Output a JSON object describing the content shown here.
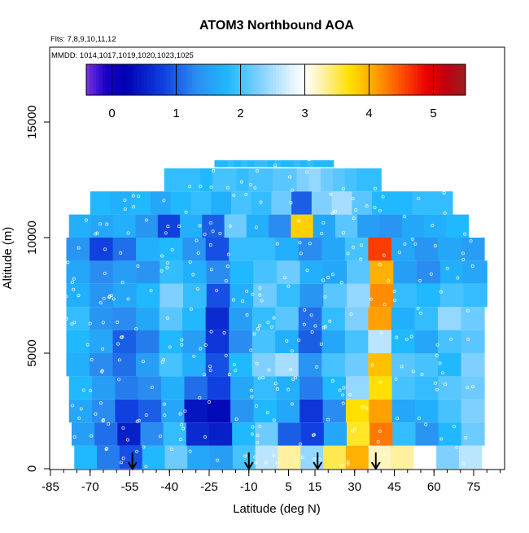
{
  "chart_data": {
    "type": "heatmap",
    "title": "ATOM3 Northbound AOA",
    "subtitle_flights": "Flts: 7,8,9,10,11,12",
    "subtitle_dates": "MMDD: 1014,1017,1019,1020,1023,1025",
    "xlabel": "Latitude (deg N)",
    "ylabel": "Altitude (m)",
    "xlim": [
      -85,
      85
    ],
    "ylim": [
      0,
      17500
    ],
    "x_ticks": [
      -85,
      -70,
      -55,
      -40,
      -25,
      -10,
      5,
      15,
      30,
      45,
      60,
      75
    ],
    "x_tick_labels": [
      "-85",
      "-70",
      "-55",
      "-40",
      "-25",
      "-10",
      "5",
      "15",
      "30",
      "45",
      "60",
      "75"
    ],
    "x_minor_step": 5,
    "y_ticks": [
      0,
      5000,
      10000,
      15000
    ],
    "y_tick_labels": [
      "0",
      "5000",
      "10000",
      "15000"
    ],
    "colorbar": {
      "range": [
        -0.4,
        5.5
      ],
      "ticks": [
        0,
        1,
        2,
        3,
        4,
        5
      ],
      "tick_labels": [
        "0",
        "1",
        "2",
        "3",
        "4",
        "5"
      ],
      "stops": [
        {
          "v": -0.4,
          "color": "#7a33e0"
        },
        {
          "v": -0.1,
          "color": "#1a00c8"
        },
        {
          "v": 0.2,
          "color": "#0000b0"
        },
        {
          "v": 0.8,
          "color": "#1040e0"
        },
        {
          "v": 1.3,
          "color": "#2a8cf0"
        },
        {
          "v": 1.8,
          "color": "#20b8ff"
        },
        {
          "v": 2.3,
          "color": "#80d0ff"
        },
        {
          "v": 2.75,
          "color": "#d8f0ff"
        },
        {
          "v": 3.0,
          "color": "#ffffff"
        },
        {
          "v": 3.3,
          "color": "#fff0a0"
        },
        {
          "v": 3.7,
          "color": "#ffe000"
        },
        {
          "v": 4.1,
          "color": "#ffa000"
        },
        {
          "v": 4.5,
          "color": "#ff5000"
        },
        {
          "v": 4.9,
          "color": "#e80000"
        },
        {
          "v": 5.2,
          "color": "#c00010"
        },
        {
          "v": 5.5,
          "color": "#9a2020"
        }
      ]
    },
    "arrows_latitude": [
      -54,
      -10,
      16,
      38
    ],
    "profile_bands": [
      {
        "alt": 500,
        "lat_min": -76,
        "lat_max": 78,
        "values": [
          1.8,
          1.2,
          0.9,
          1.8,
          2.2,
          1.6,
          1.5,
          2.0,
          2.6,
          3.3,
          2.4,
          3.5,
          4.0,
          3.2,
          3.3,
          3.0,
          2.3,
          2.6
        ]
      },
      {
        "alt": 1500,
        "lat_min": -77,
        "lat_max": 79,
        "values": [
          1.5,
          1.1,
          0.5,
          1.3,
          1.9,
          0.6,
          0.5,
          1.8,
          2.2,
          1.0,
          0.8,
          1.6,
          3.6,
          4.3,
          1.9,
          1.4,
          1.8,
          2.2
        ]
      },
      {
        "alt": 2500,
        "lat_min": -78,
        "lat_max": 79,
        "values": [
          1.6,
          1.3,
          0.8,
          1.0,
          1.6,
          0.4,
          0.3,
          1.4,
          1.8,
          1.6,
          0.7,
          1.3,
          3.7,
          4.1,
          1.6,
          1.7,
          2.0,
          2.3
        ]
      },
      {
        "alt": 3500,
        "lat_min": -78,
        "lat_max": 79,
        "values": [
          1.8,
          1.5,
          1.2,
          1.3,
          1.7,
          1.1,
          0.8,
          1.6,
          1.9,
          1.7,
          1.2,
          1.8,
          2.4,
          3.7,
          2.0,
          1.9,
          2.1,
          2.2
        ]
      },
      {
        "alt": 4500,
        "lat_min": -79,
        "lat_max": 79,
        "values": [
          1.7,
          1.3,
          1.1,
          1.5,
          2.0,
          1.7,
          0.9,
          1.8,
          2.3,
          2.5,
          1.4,
          2.0,
          2.2,
          3.9,
          2.1,
          2.0,
          1.8,
          2.3
        ]
      },
      {
        "alt": 5500,
        "lat_min": -79,
        "lat_max": 79,
        "values": [
          1.8,
          1.6,
          1.0,
          1.2,
          1.8,
          1.5,
          0.7,
          1.3,
          2.0,
          1.7,
          1.0,
          1.6,
          2.0,
          2.6,
          1.8,
          1.6,
          2.0,
          2.1
        ]
      },
      {
        "alt": 6500,
        "lat_min": -79,
        "lat_max": 79,
        "values": [
          1.9,
          1.4,
          1.3,
          1.6,
          2.1,
          1.8,
          0.6,
          1.5,
          1.9,
          2.1,
          1.1,
          1.9,
          2.3,
          4.1,
          1.7,
          1.9,
          2.4,
          2.2
        ]
      },
      {
        "alt": 7500,
        "lat_min": -79,
        "lat_max": 80,
        "values": [
          1.7,
          1.4,
          1.6,
          1.8,
          2.3,
          1.9,
          0.9,
          1.7,
          2.2,
          1.9,
          1.4,
          2.1,
          2.4,
          4.2,
          1.9,
          1.8,
          2.0,
          1.9
        ]
      },
      {
        "alt": 8500,
        "lat_min": -79,
        "lat_max": 80,
        "values": [
          1.6,
          1.3,
          1.5,
          1.4,
          1.9,
          1.7,
          1.3,
          1.8,
          2.0,
          2.2,
          1.7,
          1.6,
          2.1,
          4.0,
          1.5,
          1.3,
          1.7,
          1.6
        ]
      },
      {
        "alt": 9500,
        "lat_min": -79,
        "lat_max": 79,
        "values": [
          1.4,
          0.8,
          1.1,
          1.7,
          1.8,
          1.4,
          0.9,
          1.9,
          1.9,
          1.7,
          1.3,
          1.6,
          2.0,
          4.6,
          1.6,
          1.4,
          1.6,
          1.5
        ]
      },
      {
        "alt": 10500,
        "lat_min": -78,
        "lat_max": 73,
        "values": [
          1.7,
          1.6,
          1.7,
          1.4,
          0.8,
          1.7,
          1.0,
          2.2,
          1.7,
          1.3,
          3.8,
          1.6,
          2.1,
          1.5,
          1.4,
          1.6,
          1.7,
          1.8
        ]
      },
      {
        "alt": 11500,
        "lat_min": -70,
        "lat_max": 67,
        "values": [
          1.8,
          1.7,
          1.8,
          1.6,
          1.8,
          1.9,
          1.7,
          2.0,
          1.9,
          2.2,
          1.0,
          2.3,
          2.5,
          2.1,
          1.8,
          1.8,
          1.9,
          1.9
        ]
      },
      {
        "alt": 12500,
        "lat_min": -42,
        "lat_max": 40,
        "values": [
          1.9,
          1.9,
          1.9,
          1.8,
          2.0,
          2.0,
          1.9,
          2.0,
          2.0,
          2.1,
          2.1,
          2.3,
          2.4,
          2.2,
          2.1,
          2.0,
          1.9,
          1.9
        ]
      },
      {
        "alt": 13200,
        "lat_min": -23,
        "lat_max": 22,
        "values": [
          1.8,
          1.8,
          1.9,
          1.8,
          1.9,
          1.8,
          1.9,
          1.9,
          1.8,
          1.9,
          1.8,
          1.8,
          1.9,
          1.8,
          1.9,
          1.8,
          1.8,
          1.8
        ]
      }
    ]
  }
}
